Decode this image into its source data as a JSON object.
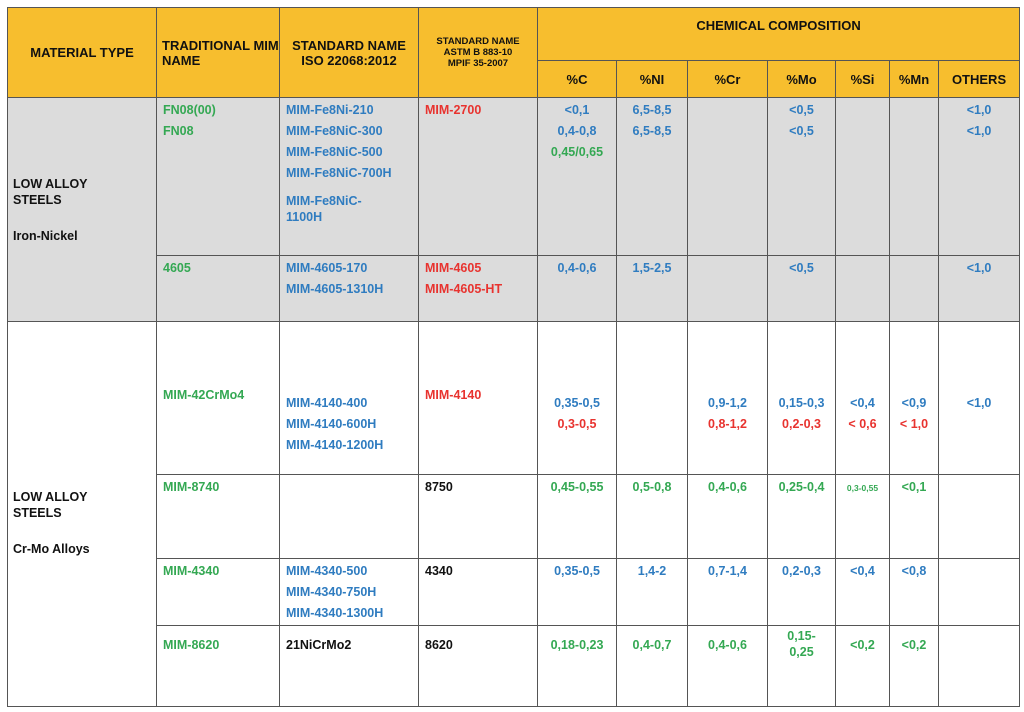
{
  "header": {
    "material_type": "MATERIAL TYPE",
    "traditional": "TRADITIONAL MIM NAME",
    "std_iso_1": "STANDARD NAME",
    "std_iso_2": "ISO 22068:2012",
    "std_astm_1": "STANDARD NAME",
    "std_astm_2": "ASTM B 883-10",
    "std_astm_3": "MPIF 35-2007",
    "chem": "CHEMICAL COMPOSITION",
    "cols": [
      "%C",
      "%NI",
      "%Cr",
      "%Mo",
      "%Si",
      "%Mn",
      "OTHERS"
    ]
  },
  "groups": [
    {
      "line1": "LOW ALLOY STEELS",
      "line2": "Iron-Nickel"
    },
    {
      "line1": "LOW ALLOY STEELS",
      "line2": "Cr-Mo Alloys"
    }
  ],
  "rows": {
    "r1": {
      "trad": [
        "FN08(00)",
        "FN08"
      ],
      "iso": [
        "MIM-Fe8Ni-210",
        "MIM-Fe8NiC-300",
        "MIM-Fe8NiC-500",
        "MIM-Fe8NiC-700H",
        "MIM-Fe8NiC-1100H"
      ],
      "astm": [
        "MIM-2700"
      ],
      "c": [
        "<0,1",
        "0,4-0,8",
        "0,45/0,65"
      ],
      "ni": [
        "6,5-8,5",
        "6,5-8,5"
      ],
      "mo": [
        "<0,5",
        "<0,5"
      ],
      "others": [
        "<1,0",
        "<1,0"
      ]
    },
    "r2": {
      "trad": "4605",
      "iso": [
        "MIM-4605-170",
        "MIM-4605-1310H"
      ],
      "astm": [
        "MIM-4605",
        "MIM-4605-HT"
      ],
      "c": "0,4-0,6",
      "ni": "1,5-2,5",
      "mo": "<0,5",
      "others": "<1,0"
    },
    "r3": {
      "trad": "MIM-42CrMo4",
      "iso": [
        "MIM-4140-400",
        "MIM-4140-600H",
        "MIM-4140-1200H"
      ],
      "astm": "MIM-4140",
      "c": [
        "0,35-0,5",
        "0,3-0,5"
      ],
      "cr": [
        "0,9-1,2",
        "0,8-1,2"
      ],
      "mo": [
        "0,15-0,3",
        "0,2-0,3"
      ],
      "si": [
        "<0,4",
        "< 0,6"
      ],
      "mn": [
        "<0,9",
        "< 1,0"
      ],
      "others": "<1,0"
    },
    "r4": {
      "trad": "MIM-8740",
      "astm": "8750",
      "c": "0,45-0,55",
      "ni": "0,5-0,8",
      "cr": "0,4-0,6",
      "mo": "0,25-0,4",
      "si": "0,3-0,55",
      "mn": "<0,1"
    },
    "r5": {
      "trad": "MIM-4340",
      "iso": [
        "MIM-4340-500",
        "MIM-4340-750H",
        "MIM-4340-1300H"
      ],
      "astm": "4340",
      "c": "0,35-0,5",
      "ni": "1,4-2",
      "cr": "0,7-1,4",
      "mo": "0,2-0,3",
      "si": "<0,4",
      "mn": "<0,8"
    },
    "r6": {
      "trad": "MIM-8620",
      "iso": "21NiCrMo2",
      "astm": "8620",
      "c": "0,18-0,23",
      "ni": "0,4-0,7",
      "cr": "0,4-0,6",
      "mo": "0,15-0,25",
      "si": "<0,2",
      "mn": "<0,2"
    }
  },
  "colors": {
    "header": "#f7be2e",
    "band": "#dcdcdc",
    "green": "#34a853",
    "blue": "#2f7cc0",
    "red": "#e8332f"
  }
}
